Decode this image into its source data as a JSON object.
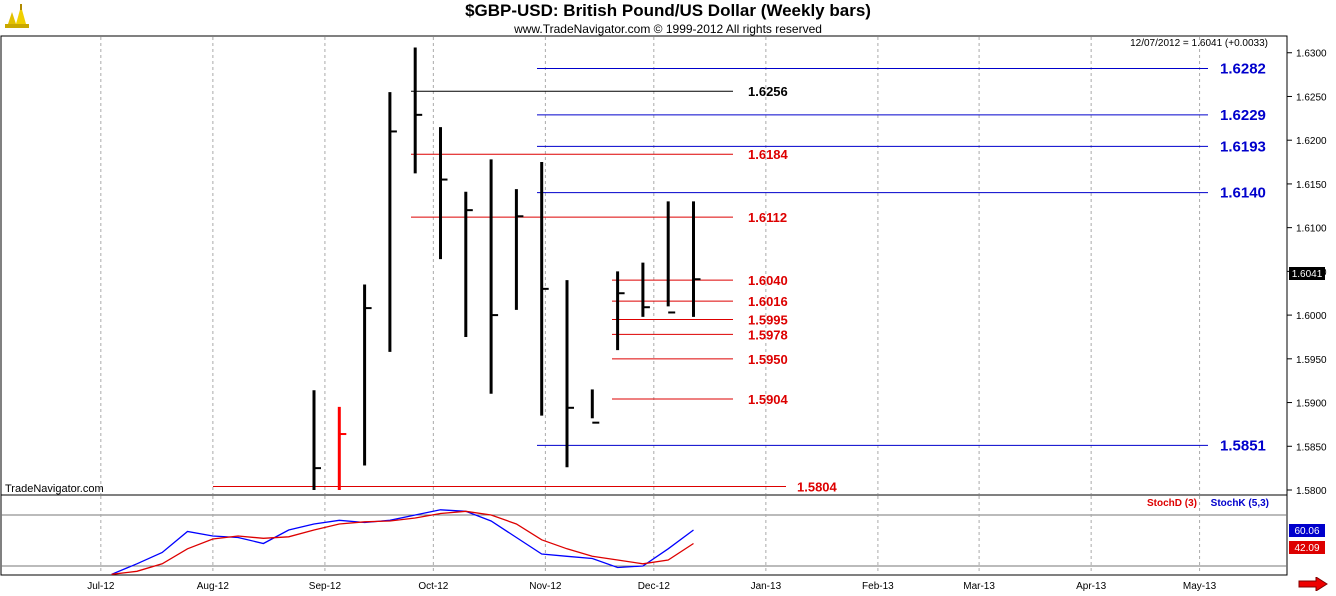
{
  "header": {
    "title": "$GBP-USD:  British Pound/US Dollar  (Weekly bars)",
    "subtitle": "www.TradeNavigator.com © 1999-2012 All rights reserved"
  },
  "readout": "12/07/2012 = 1.6041 (+0.0033)",
  "watermark": "TradeNavigator.com",
  "colors": {
    "bar": "#000000",
    "highlight_bar": "#ff0000",
    "blue_level": "#0000cc",
    "red_level": "#dd0000",
    "black_level": "#000000",
    "stochK": "#0000ff",
    "stochD": "#dd0000"
  },
  "chart_data": [
    {
      "type": "ohlc",
      "x": [
        "2012-08-24",
        "2012-08-31",
        "2012-09-07",
        "2012-09-14",
        "2012-09-21",
        "2012-09-28",
        "2012-10-05",
        "2012-10-12",
        "2012-10-19",
        "2012-10-26",
        "2012-11-02",
        "2012-11-09",
        "2012-11-16",
        "2012-11-23",
        "2012-11-30",
        "2012-12-07"
      ],
      "series": [
        {
          "values": {
            "high": [
              1.5914,
              1.5895,
              1.6035,
              1.6255,
              1.6306,
              1.6215,
              1.6141,
              1.6178,
              1.6144,
              1.6175,
              1.604,
              1.5915,
              1.605,
              1.606,
              1.613,
              1.613
            ],
            "low": [
              1.58,
              1.58,
              1.5828,
              1.5958,
              1.6162,
              1.6064,
              1.5975,
              1.591,
              1.6006,
              1.5885,
              1.5826,
              1.5882,
              1.596,
              1.5998,
              1.601,
              1.5998
            ],
            "close": [
              1.5825,
              1.5864,
              1.6008,
              1.621,
              1.6229,
              1.6155,
              1.612,
              1.6,
              1.6113,
              1.603,
              1.5894,
              1.5877,
              1.6025,
              1.6009,
              1.6003,
              1.6041
            ]
          }
        }
      ],
      "highlight_bar_index": 1,
      "ylim": [
        1.58,
        1.631
      ],
      "y_ticks": [
        "1.5800",
        "1.5850",
        "1.5900",
        "1.5950",
        "1.6000",
        "1.6050",
        "1.6100",
        "1.6150",
        "1.6200",
        "1.6250",
        "1.6300"
      ],
      "x_tick_labels": [
        "Jul-12",
        "Aug-12",
        "Sep-12",
        "Oct-12",
        "Nov-12",
        "Dec-12",
        "Jan-13",
        "Feb-13",
        "Mar-13",
        "Apr-13",
        "May-13"
      ],
      "last_price_label": "1.6041",
      "levels": [
        {
          "value": 1.6282,
          "label": "1.6282",
          "color": "blue"
        },
        {
          "value": 1.6229,
          "label": "1.6229",
          "color": "blue"
        },
        {
          "value": 1.6193,
          "label": "1.6193",
          "color": "blue"
        },
        {
          "value": 1.614,
          "label": "1.6140",
          "color": "blue"
        },
        {
          "value": 1.5851,
          "label": "1.5851",
          "color": "blue"
        },
        {
          "value": 1.6256,
          "label": "1.6256",
          "color": "black"
        },
        {
          "value": 1.6184,
          "label": "1.6184",
          "color": "red"
        },
        {
          "value": 1.6112,
          "label": "1.6112",
          "color": "red"
        },
        {
          "value": 1.604,
          "label": "1.6040",
          "color": "red"
        },
        {
          "value": 1.6016,
          "label": "1.6016",
          "color": "red"
        },
        {
          "value": 1.5995,
          "label": "1.5995",
          "color": "red"
        },
        {
          "value": 1.5978,
          "label": "1.5978",
          "color": "red"
        },
        {
          "value": 1.595,
          "label": "1.5950",
          "color": "red"
        },
        {
          "value": 1.5904,
          "label": "1.5904",
          "color": "red"
        },
        {
          "value": 1.5804,
          "label": "1.5804",
          "color": "red"
        }
      ]
    },
    {
      "type": "line",
      "x": [
        "2012-06-29",
        "2012-07-06",
        "2012-07-13",
        "2012-07-20",
        "2012-07-27",
        "2012-08-03",
        "2012-08-10",
        "2012-08-17",
        "2012-08-24",
        "2012-08-31",
        "2012-09-07",
        "2012-09-14",
        "2012-09-21",
        "2012-09-28",
        "2012-10-05",
        "2012-10-12",
        "2012-10-19",
        "2012-10-26",
        "2012-11-02",
        "2012-11-09",
        "2012-11-16",
        "2012-11-23",
        "2012-11-30",
        "2012-12-07"
      ],
      "series": [
        {
          "name": "StochK (5,3)",
          "values": [
            1,
            15,
            30,
            58,
            52,
            50,
            42,
            60,
            68,
            73,
            70,
            73,
            80,
            87,
            85,
            72,
            50,
            28,
            25,
            22,
            10,
            12,
            35,
            60
          ]
        },
        {
          "name": "StochD (3)",
          "values": [
            1,
            5,
            15,
            35,
            48,
            52,
            49,
            51,
            60,
            68,
            71,
            72,
            76,
            82,
            85,
            80,
            68,
            47,
            35,
            25,
            20,
            15,
            20,
            42
          ]
        }
      ],
      "ylim": [
        0,
        100
      ],
      "last_values": {
        "StochK (5,3)": "60.06",
        "StochD (3)": "42.09"
      }
    }
  ]
}
